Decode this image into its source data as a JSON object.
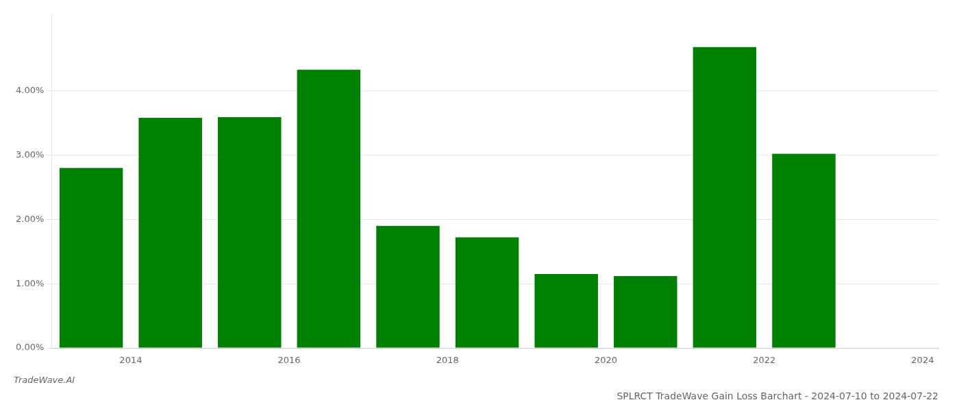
{
  "chart_data": {
    "type": "bar",
    "title": "SPLRCT TradeWave Gain Loss Barchart - 2024-07-10 to 2024-07-22",
    "annotations": [
      "TradeWave.AI"
    ],
    "x": [
      2013.5,
      2014.5,
      2015.5,
      2016.5,
      2017.5,
      2018.5,
      2019.5,
      2020.5,
      2021.5,
      2022.5
    ],
    "values": [
      0.028,
      0.0358,
      0.0359,
      0.0433,
      0.019,
      0.0172,
      0.0115,
      0.0112,
      0.0468,
      0.0302
    ],
    "color": "#008000",
    "xlim": [
      2013.0,
      2024.2
    ],
    "xticks": [
      2014,
      2016,
      2018,
      2020,
      2022,
      2024
    ],
    "ylim": [
      0,
      0.052
    ],
    "yticks": [
      {
        "value": 0.0,
        "label": "0.00%"
      },
      {
        "value": 0.01,
        "label": "1.00%"
      },
      {
        "value": 0.02,
        "label": "2.00%"
      },
      {
        "value": 0.03,
        "label": "3.00%"
      },
      {
        "value": 0.04,
        "label": "4.00%"
      }
    ],
    "grid": true
  }
}
